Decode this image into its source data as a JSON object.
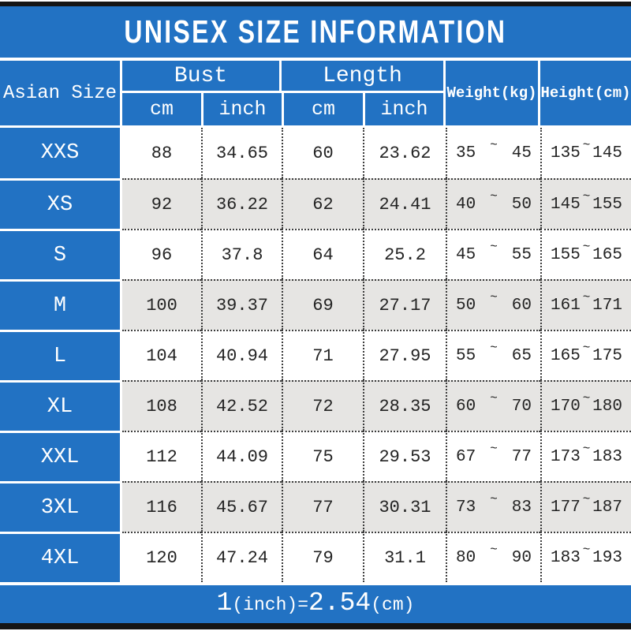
{
  "title": "UNISEX SIZE INFORMATION",
  "header": {
    "size_column": "Asian Size",
    "bust": "Bust",
    "length": "Length",
    "weight": "Weight(kg)",
    "height": "Height(cm)",
    "bust_cm": "cm",
    "bust_inch": "inch",
    "length_cm": "cm",
    "length_inch": "inch"
  },
  "tilde": "~",
  "rows": [
    {
      "size": "XXS",
      "bust_cm": "88",
      "bust_inch": "34.65",
      "length_cm": "60",
      "length_inch": "23.62",
      "weight_min": "35",
      "weight_max": "45",
      "height_min": "135",
      "height_max": "145"
    },
    {
      "size": "XS",
      "bust_cm": "92",
      "bust_inch": "36.22",
      "length_cm": "62",
      "length_inch": "24.41",
      "weight_min": "40",
      "weight_max": "50",
      "height_min": "145",
      "height_max": "155"
    },
    {
      "size": "S",
      "bust_cm": "96",
      "bust_inch": "37.8",
      "length_cm": "64",
      "length_inch": "25.2",
      "weight_min": "45",
      "weight_max": "55",
      "height_min": "155",
      "height_max": "165"
    },
    {
      "size": "M",
      "bust_cm": "100",
      "bust_inch": "39.37",
      "length_cm": "69",
      "length_inch": "27.17",
      "weight_min": "50",
      "weight_max": "60",
      "height_min": "161",
      "height_max": "171"
    },
    {
      "size": "L",
      "bust_cm": "104",
      "bust_inch": "40.94",
      "length_cm": "71",
      "length_inch": "27.95",
      "weight_min": "55",
      "weight_max": "65",
      "height_min": "165",
      "height_max": "175"
    },
    {
      "size": "XL",
      "bust_cm": "108",
      "bust_inch": "42.52",
      "length_cm": "72",
      "length_inch": "28.35",
      "weight_min": "60",
      "weight_max": "70",
      "height_min": "170",
      "height_max": "180"
    },
    {
      "size": "XXL",
      "bust_cm": "112",
      "bust_inch": "44.09",
      "length_cm": "75",
      "length_inch": "29.53",
      "weight_min": "67",
      "weight_max": "77",
      "height_min": "173",
      "height_max": "183"
    },
    {
      "size": "3XL",
      "bust_cm": "116",
      "bust_inch": "45.67",
      "length_cm": "77",
      "length_inch": "30.31",
      "weight_min": "73",
      "weight_max": "83",
      "height_min": "177",
      "height_max": "187"
    },
    {
      "size": "4XL",
      "bust_cm": "120",
      "bust_inch": "47.24",
      "length_cm": "79",
      "length_inch": "31.1",
      "weight_min": "80",
      "weight_max": "90",
      "height_min": "183",
      "height_max": "193"
    }
  ],
  "footer": {
    "p1": "1",
    "p2": "(inch)",
    "p3": "=",
    "p4": "2.54",
    "p5": "(cm)"
  },
  "colors": {
    "blue": "#2272c3",
    "alt": "#e6e5e3",
    "bar": "#151515",
    "ink": "#232323",
    "dot": "#3c3c3c"
  }
}
